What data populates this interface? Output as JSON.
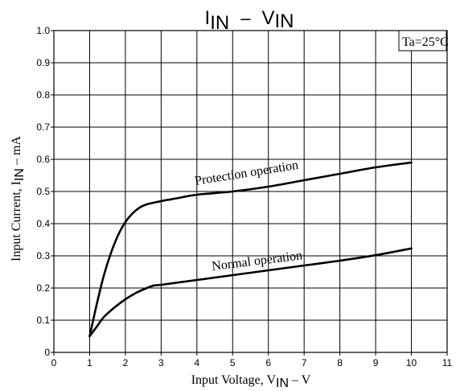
{
  "chart_data": {
    "type": "line",
    "title": {
      "main": "I",
      "sub": "IN",
      "sep": "–",
      "main2": "V",
      "sub2": "IN"
    },
    "xlabel": {
      "pre": "Input Voltage, V",
      "sub": "IN",
      "post": " – V"
    },
    "ylabel": {
      "pre": "Input Current, I",
      "sub": "IN",
      "post": " – mA"
    },
    "annotation": "Ta=25°C",
    "xlim": [
      0,
      11
    ],
    "ylim": [
      0,
      1.0
    ],
    "xticks": [
      "0",
      "1",
      "2",
      "3",
      "4",
      "5",
      "6",
      "7",
      "8",
      "9",
      "10",
      "11"
    ],
    "yticks": [
      "0",
      "0.1",
      "0.2",
      "0.3",
      "0.4",
      "0.5",
      "0.6",
      "0.7",
      "0.8",
      "0.9",
      "1.0"
    ],
    "grid": true,
    "series": [
      {
        "name": "Protection operation",
        "x": [
          1.0,
          1.2,
          1.4,
          1.6,
          1.8,
          2.0,
          2.2,
          2.4,
          2.6,
          3.0,
          3.5,
          4.0,
          5.0,
          6.0,
          7.0,
          8.0,
          9.0,
          10.0
        ],
        "y": [
          0.05,
          0.15,
          0.24,
          0.31,
          0.365,
          0.405,
          0.432,
          0.45,
          0.46,
          0.47,
          0.48,
          0.49,
          0.5,
          0.515,
          0.535,
          0.555,
          0.575,
          0.59
        ]
      },
      {
        "name": "Normal operation",
        "x": [
          1.0,
          1.2,
          1.4,
          1.7,
          2.0,
          2.3,
          2.6,
          2.8,
          3.0,
          4.0,
          5.0,
          6.0,
          7.0,
          8.0,
          9.0,
          10.0
        ],
        "y": [
          0.05,
          0.08,
          0.11,
          0.14,
          0.165,
          0.185,
          0.2,
          0.208,
          0.21,
          0.225,
          0.24,
          0.255,
          0.27,
          0.285,
          0.302,
          0.323
        ]
      }
    ]
  }
}
